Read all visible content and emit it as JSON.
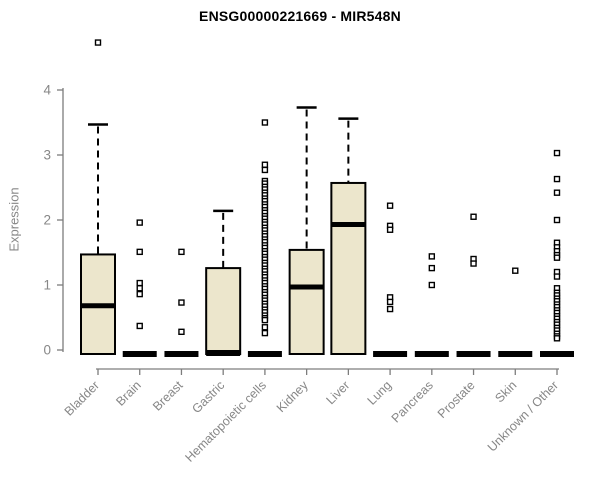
{
  "chart_data": {
    "type": "boxplot",
    "title": "ENSG00000221669 - MIR548N",
    "ylabel": "Expression",
    "xlabel": "",
    "ylim": [
      0,
      4
    ],
    "yticks": [
      0,
      1,
      2,
      3,
      4
    ],
    "grid": false,
    "legend": "none",
    "categories": [
      "Bladder",
      "Brain",
      "Breast",
      "Gastric",
      "Hematopoietic cells",
      "Kidney",
      "Liver",
      "Lung",
      "Pancreas",
      "Prostate",
      "Skin",
      "Unknown / Other"
    ],
    "boxes": [
      {
        "category": "Bladder",
        "q1": 0,
        "median": 0.68,
        "q3": 1.47,
        "whisker_low": 0,
        "whisker_high": 3.47,
        "outliers": [
          4.73
        ]
      },
      {
        "category": "Brain",
        "q1": 0,
        "median": 0,
        "q3": 0,
        "whisker_low": 0,
        "whisker_high": 0,
        "outliers": [
          1.96,
          1.51,
          1.03,
          0.95,
          0.86,
          0.37
        ]
      },
      {
        "category": "Breast",
        "q1": 0,
        "median": 0,
        "q3": 0,
        "whisker_low": 0,
        "whisker_high": 0,
        "outliers": [
          1.51,
          0.73,
          0.28
        ]
      },
      {
        "category": "Gastric",
        "q1": 0,
        "median": 0,
        "q3": 1.26,
        "whisker_low": 0,
        "whisker_high": 2.14,
        "outliers": []
      },
      {
        "category": "Hematopoietic cells",
        "q1": 0,
        "median": 0,
        "q3": 0,
        "whisker_low": 0,
        "whisker_high": 0,
        "outliers": [
          3.5,
          2.85,
          2.77,
          2.6,
          2.56,
          2.51,
          2.47,
          2.42,
          2.38,
          2.33,
          2.29,
          2.24,
          2.2,
          2.15,
          2.11,
          2.06,
          2.02,
          1.97,
          1.93,
          1.88,
          1.84,
          1.79,
          1.75,
          1.7,
          1.66,
          1.61,
          1.57,
          1.52,
          1.48,
          1.43,
          1.39,
          1.34,
          1.3,
          1.25,
          1.21,
          1.16,
          1.12,
          1.07,
          1.03,
          0.98,
          0.94,
          0.89,
          0.85,
          0.8,
          0.76,
          0.71,
          0.67,
          0.62,
          0.58,
          0.53,
          0.49,
          0.46,
          0.35,
          0.26
        ]
      },
      {
        "category": "Kidney",
        "q1": 0,
        "median": 0.97,
        "q3": 1.54,
        "whisker_low": 0,
        "whisker_high": 3.73,
        "outliers": []
      },
      {
        "category": "Liver",
        "q1": 0,
        "median": 1.93,
        "q3": 2.57,
        "whisker_low": 0,
        "whisker_high": 3.56,
        "outliers": []
      },
      {
        "category": "Lung",
        "q1": 0,
        "median": 0,
        "q3": 0,
        "whisker_low": 0,
        "whisker_high": 0,
        "outliers": [
          2.22,
          1.91,
          1.85,
          0.81,
          0.74,
          0.63
        ]
      },
      {
        "category": "Pancreas",
        "q1": 0,
        "median": 0,
        "q3": 0,
        "whisker_low": 0,
        "whisker_high": 0,
        "outliers": [
          1.44,
          1.26,
          1.0
        ]
      },
      {
        "category": "Prostate",
        "q1": 0,
        "median": 0,
        "q3": 0,
        "whisker_low": 0,
        "whisker_high": 0,
        "outliers": [
          2.05,
          1.4,
          1.33
        ]
      },
      {
        "category": "Skin",
        "q1": 0,
        "median": 0,
        "q3": 0,
        "whisker_low": 0,
        "whisker_high": 0,
        "outliers": [
          1.22
        ]
      },
      {
        "category": "Unknown / Other",
        "q1": 0,
        "median": 0,
        "q3": 0,
        "whisker_low": 0,
        "whisker_high": 0,
        "outliers": [
          3.03,
          2.63,
          2.42,
          2.0,
          1.65,
          1.58,
          1.52,
          1.46,
          1.42,
          1.2,
          1.13,
          0.95,
          0.88,
          0.84,
          0.79,
          0.75,
          0.7,
          0.66,
          0.61,
          0.57,
          0.52,
          0.48,
          0.43,
          0.39,
          0.34,
          0.3,
          0.25,
          0.21,
          0.18
        ]
      }
    ],
    "colors": {
      "box_fill": "#ece6cc",
      "box_border": "#000000",
      "median": "#000000",
      "whisker": "#000000",
      "outlier_stroke": "#000000",
      "outlier_fill": "#ffffff",
      "axis": "#7d7d7d",
      "tick_label": "#878787",
      "title": "#000000",
      "background": "#ffffff"
    }
  }
}
